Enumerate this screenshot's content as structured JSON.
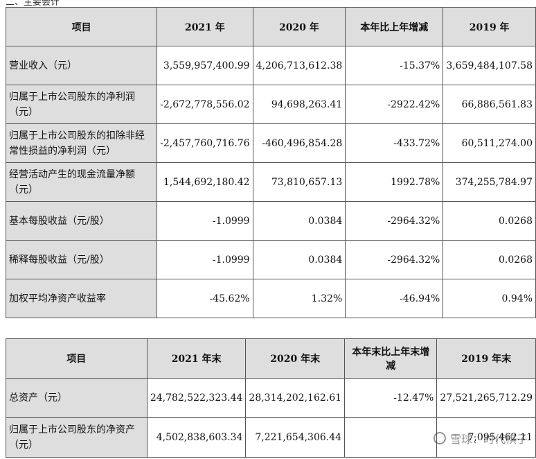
{
  "top_text": "二、主要会计",
  "table1": {
    "headers": [
      "项目",
      "2021 年",
      "2020 年",
      "本年比上年增减",
      "2019 年"
    ],
    "rows": [
      {
        "label": "营业收入（元）",
        "v2021": "3,559,957,400.99",
        "v2020": "4,206,713,612.38",
        "change": "-15.37%",
        "v2019": "3,659,484,107.58"
      },
      {
        "label": "归属于上市公司股东的净利润（元）",
        "v2021": "-2,672,778,556.02",
        "v2020": "94,698,263.41",
        "change": "-2922.42%",
        "v2019": "66,886,561.83"
      },
      {
        "label": "归属于上市公司股东的扣除非经常性损益的净利润（元）",
        "v2021": "-2,457,760,716.76",
        "v2020": "-460,496,854.28",
        "change": "-433.72%",
        "v2019": "60,511,274.00"
      },
      {
        "label": "经营活动产生的现金流量净额（元）",
        "v2021": "1,544,692,180.42",
        "v2020": "73,810,657.13",
        "change": "1992.78%",
        "v2019": "374,255,784.97"
      },
      {
        "label": "基本每股收益（元/股）",
        "v2021": "-1.0999",
        "v2020": "0.0384",
        "change": "-2964.32%",
        "v2019": "0.0268"
      },
      {
        "label": "稀释每股收益（元/股）",
        "v2021": "-1.0999",
        "v2020": "0.0384",
        "change": "-2964.32%",
        "v2019": "0.0268"
      },
      {
        "label": "加权平均净资产收益率",
        "v2021": "-45.62%",
        "v2020": "1.32%",
        "change": "-46.94%",
        "v2019": "0.94%"
      }
    ]
  },
  "table2": {
    "headers": [
      "项目",
      "2021 年末",
      "2020 年末",
      "本年末比上年末增减",
      "2019 年末"
    ],
    "rows": [
      {
        "label": "总资产（元）",
        "v2021": "24,782,522,323.44",
        "v2020": "28,314,202,162.61",
        "change": "-12.47%",
        "v2019": "27,521,265,712.29"
      },
      {
        "label": "归属于上市公司股东的净资产（元）",
        "v2021": "4,502,838,603.34",
        "v2020": "7,221,654,306.44",
        "change": "",
        "v2019": "7,095,462.11"
      }
    ]
  },
  "watermark": {
    "text": "雪球：时代棋子",
    "icon": "snowball-logo-icon"
  }
}
